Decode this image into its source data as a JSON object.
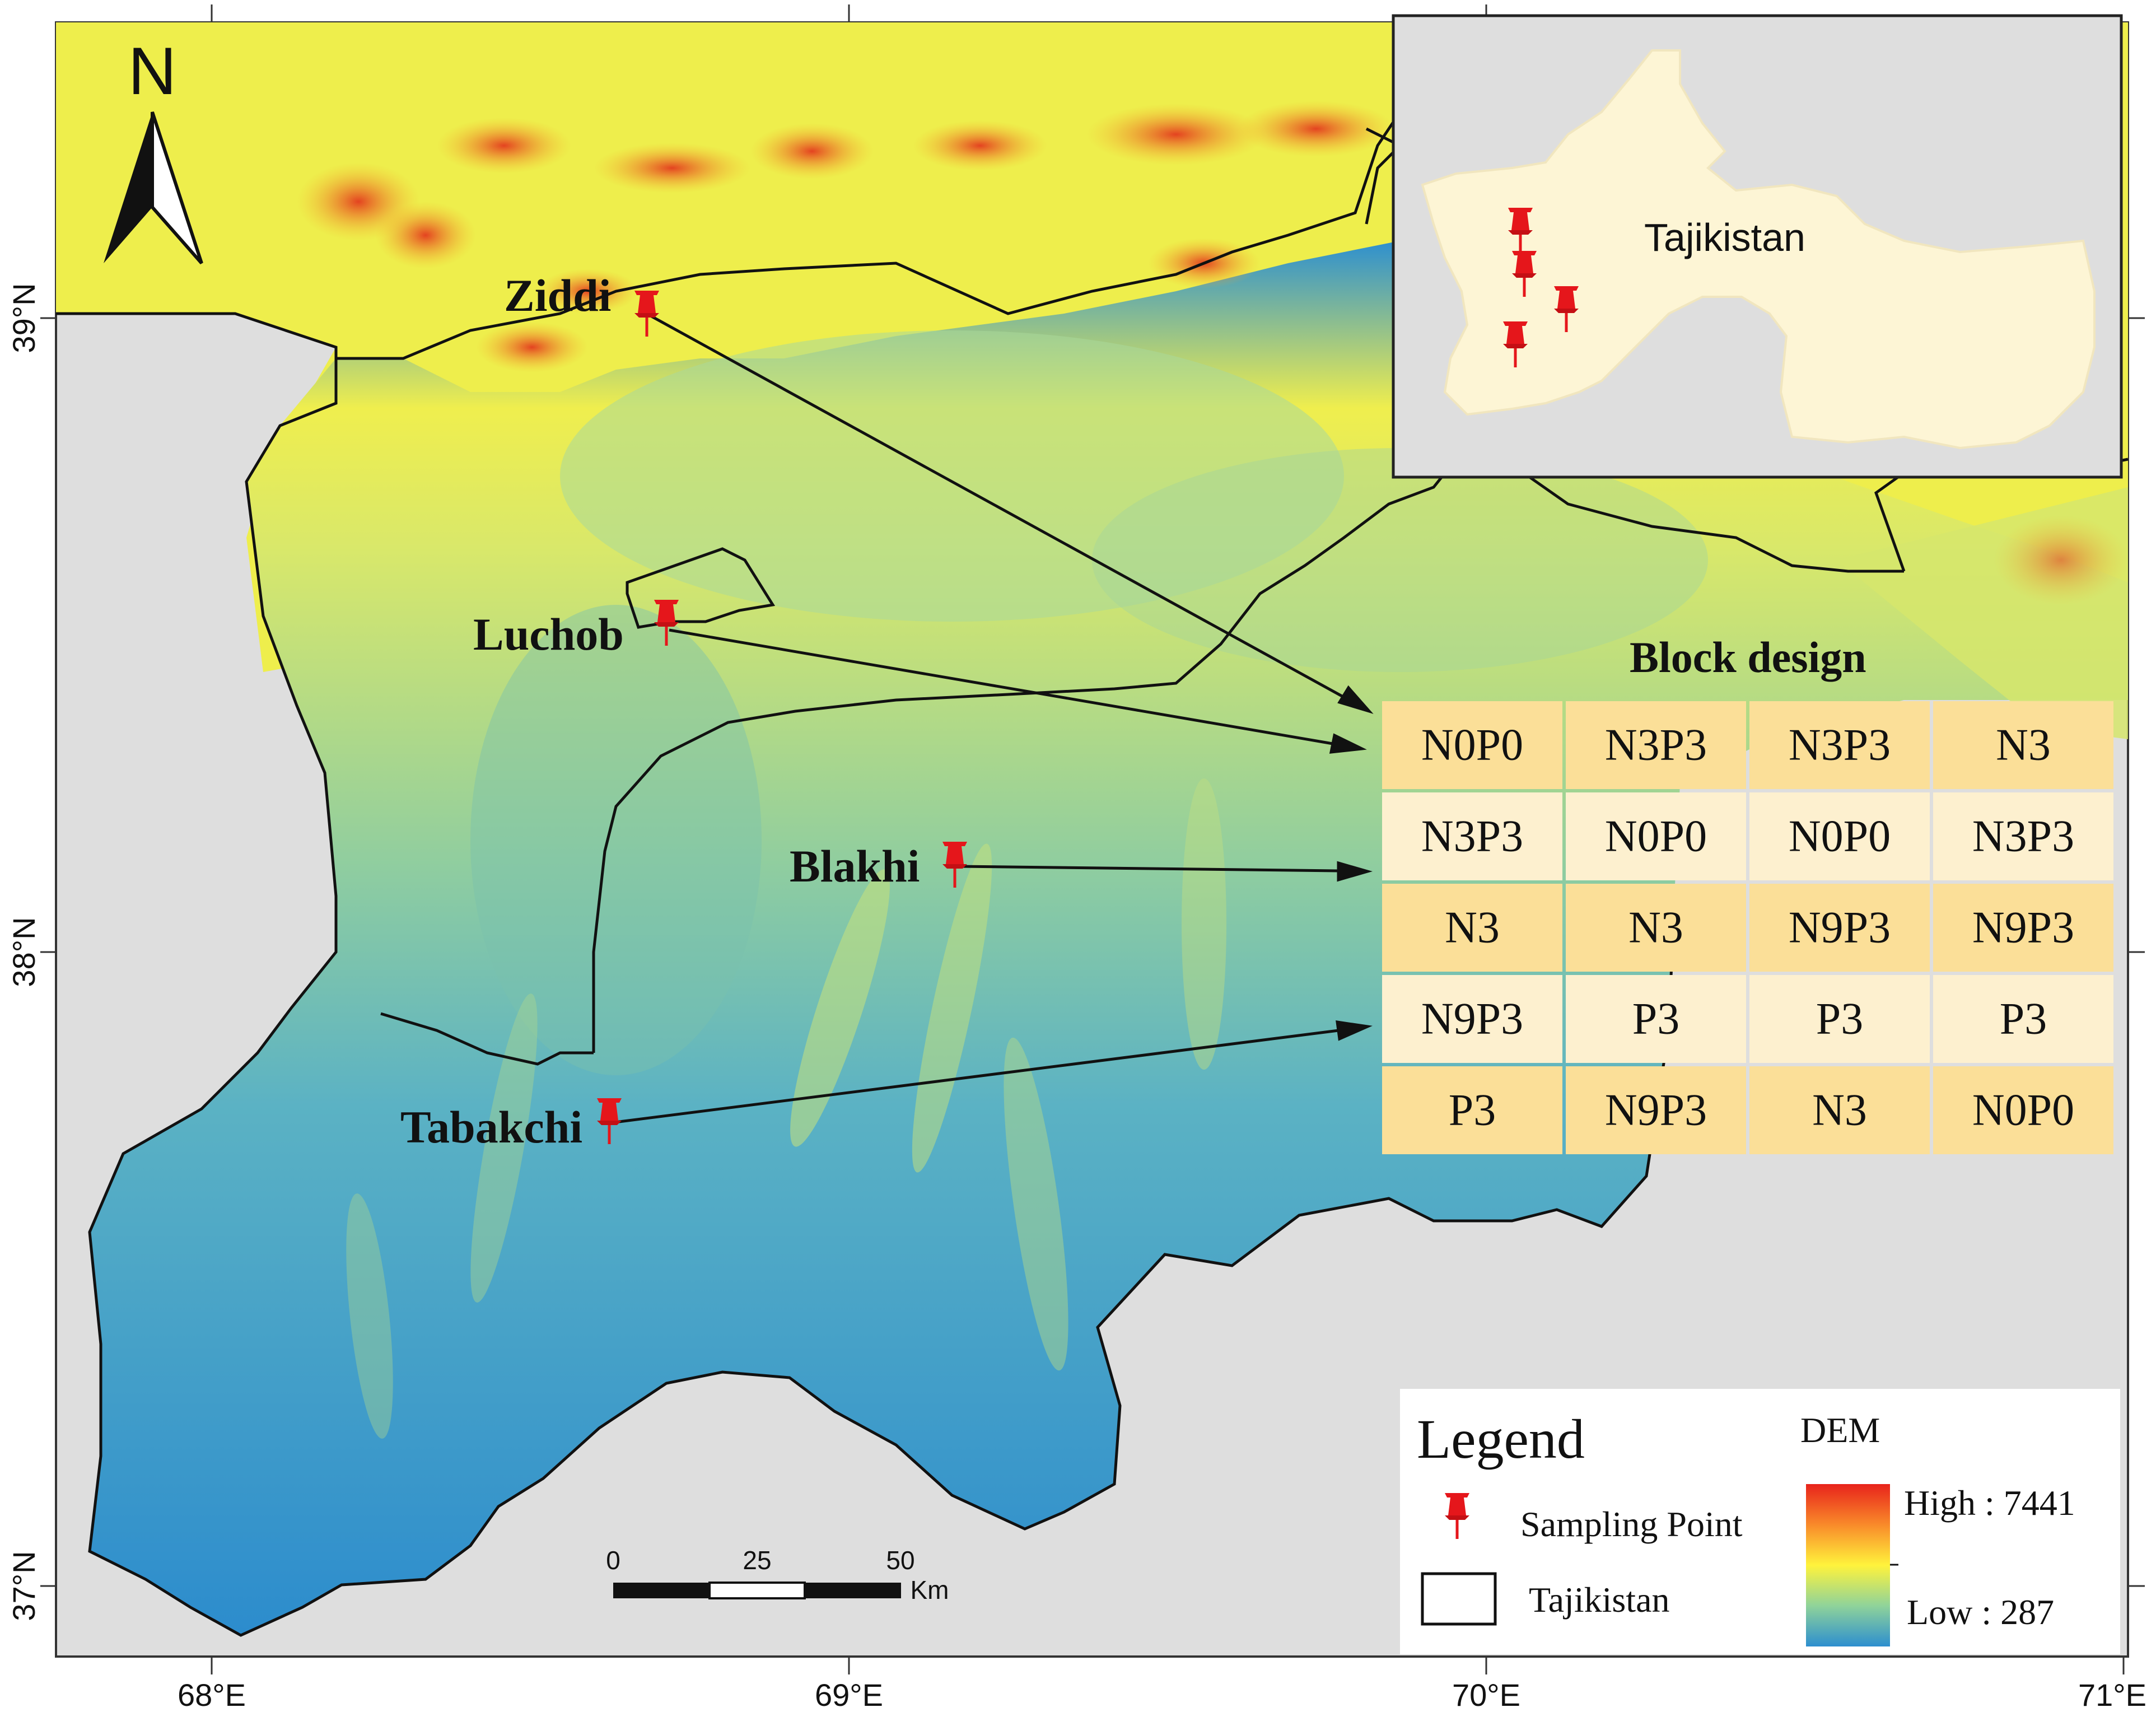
{
  "map": {
    "north_label": "N",
    "lat_labels": [
      "39°N",
      "38°N",
      "37°N"
    ],
    "lon_labels": [
      "68°E",
      "69°E",
      "70°E",
      "71°E"
    ],
    "sites": [
      {
        "name": "Ziddi"
      },
      {
        "name": "Luchob"
      },
      {
        "name": "Blakhi"
      },
      {
        "name": "Tabakchi"
      }
    ]
  },
  "inset": {
    "country_label": "Tajikistan",
    "marker_count": 4
  },
  "block_design": {
    "title": "Block design",
    "rows": [
      [
        "N0P0",
        "N3P3",
        "N3P3",
        "N3"
      ],
      [
        "N3P3",
        "N0P0",
        "N0P0",
        "N3P3"
      ],
      [
        "N3",
        "N3",
        "N9P3",
        "N9P3"
      ],
      [
        "N9P3",
        "P3",
        "P3",
        "P3"
      ],
      [
        "P3",
        "N9P3",
        "N3",
        "N0P0"
      ]
    ],
    "colors": {
      "dark": "#fbdf98",
      "light": "#fdf0cf"
    }
  },
  "legend": {
    "title": "Legend",
    "sampling_point": "Sampling Point",
    "boundary": "Tajikistan",
    "dem_title": "DEM",
    "dem_high": "High : 7441",
    "dem_low": "Low : 287",
    "ramp_colors": [
      "#e8231b",
      "#f98a2a",
      "#fff33c",
      "#8fd39a",
      "#2d8fcf"
    ]
  },
  "scale_bar": {
    "ticks": [
      "0",
      "25",
      "50"
    ],
    "unit": "Km"
  },
  "colors": {
    "background_gray": "#dedede",
    "marker_red": "#e5161b",
    "inset_country": "#fdf5d5"
  }
}
